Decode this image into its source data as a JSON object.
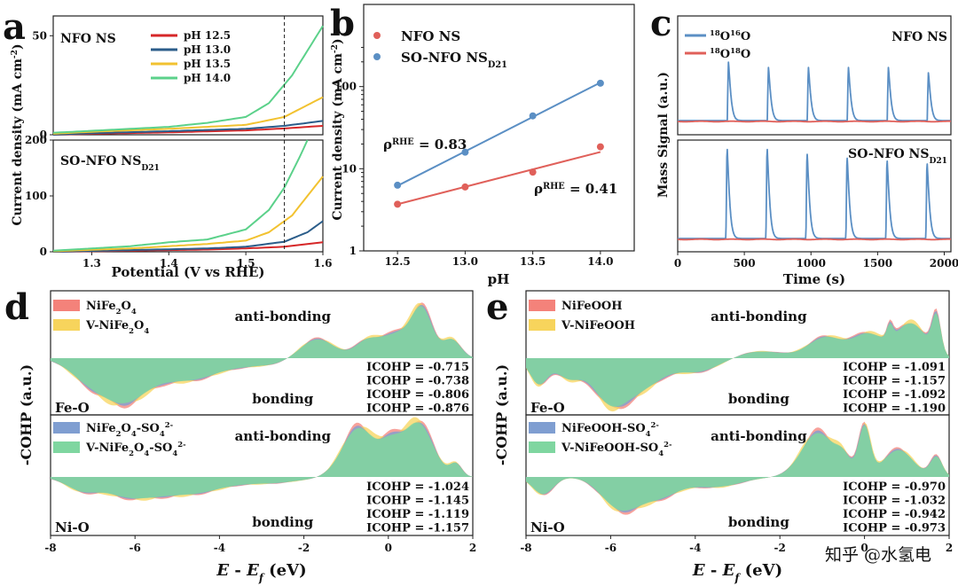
{
  "panel_letters": {
    "a": "a",
    "b": "b",
    "c": "c",
    "d": "d",
    "e": "e"
  },
  "colors": {
    "red": "#d62728",
    "blue": "#2b5d8a",
    "yellow": "#f2c230",
    "green": "#5bd18a",
    "ptblue": "#5b8fc4",
    "ptred": "#e0605a",
    "fillred": "#f4827a",
    "fillyellow": "#f7d45c",
    "fillblue": "#7f9ed1",
    "fillgreen": "#7fd6a0"
  },
  "chart_data": [
    {
      "id": "a-top",
      "type": "line",
      "title": "NFO NS",
      "xlim": [
        1.25,
        1.6
      ],
      "ylim": [
        0,
        60
      ],
      "yticks": [
        "0",
        "50"
      ],
      "series": [
        {
          "name": "pH 12.5",
          "color": "#d62728",
          "x": [
            1.25,
            1.3,
            1.4,
            1.5,
            1.55,
            1.6
          ],
          "y": [
            0,
            0.5,
            1.2,
            2.2,
            3.2,
            4.5
          ]
        },
        {
          "name": "pH 13.0",
          "color": "#2b5d8a",
          "x": [
            1.25,
            1.3,
            1.4,
            1.5,
            1.55,
            1.6
          ],
          "y": [
            0,
            0.8,
            1.8,
            3,
            4.5,
            7
          ]
        },
        {
          "name": "pH 13.5",
          "color": "#f2c230",
          "x": [
            1.25,
            1.3,
            1.4,
            1.5,
            1.55,
            1.6
          ],
          "y": [
            0.5,
            1.5,
            3,
            5,
            9,
            19
          ]
        },
        {
          "name": "pH 14.0",
          "color": "#5bd18a",
          "x": [
            1.25,
            1.3,
            1.4,
            1.45,
            1.5,
            1.53,
            1.56,
            1.6
          ],
          "y": [
            1,
            2,
            4,
            6,
            9,
            16,
            30,
            55
          ]
        }
      ]
    },
    {
      "id": "a-bottom",
      "type": "line",
      "title": "SO-NFO NS",
      "title_sub": "D21",
      "xlim": [
        1.25,
        1.6
      ],
      "ylim": [
        0,
        200
      ],
      "xticks": [
        "1.3",
        "1.4",
        "1.5",
        "1.6"
      ],
      "yticks": [
        "0",
        "100",
        "200"
      ],
      "xlabel": "Potential (V vs RHE)",
      "ylabel": "Current  density (mA cm",
      "ylabel_sup": "-2",
      "ylabel_end": ")",
      "vline": 1.55,
      "series": [
        {
          "name": "pH 12.5",
          "color": "#d62728",
          "x": [
            1.25,
            1.35,
            1.45,
            1.5,
            1.55,
            1.6
          ],
          "y": [
            0,
            2,
            4,
            6,
            9,
            17
          ]
        },
        {
          "name": "pH 13.0",
          "color": "#2b5d8a",
          "x": [
            1.25,
            1.35,
            1.45,
            1.5,
            1.55,
            1.58,
            1.6
          ],
          "y": [
            0,
            3,
            6,
            9,
            18,
            35,
            55
          ]
        },
        {
          "name": "pH 13.5",
          "color": "#f2c230",
          "x": [
            1.25,
            1.35,
            1.45,
            1.5,
            1.53,
            1.56,
            1.58,
            1.6
          ],
          "y": [
            1,
            6,
            14,
            20,
            35,
            65,
            100,
            135
          ]
        },
        {
          "name": "pH 14.0",
          "color": "#5bd18a",
          "x": [
            1.25,
            1.35,
            1.4,
            1.45,
            1.5,
            1.53,
            1.55,
            1.57,
            1.58
          ],
          "y": [
            2,
            10,
            17,
            22,
            40,
            75,
            115,
            170,
            200
          ]
        }
      ]
    },
    {
      "id": "b",
      "type": "scatter",
      "xlabel": "pH",
      "ylabel": "Current  density (mA cm",
      "ylabel_sup": "-2",
      "ylabel_end": ")",
      "xlim": [
        12.25,
        14.25
      ],
      "ylim": [
        1,
        1000
      ],
      "yscale": "log",
      "xticks": [
        "12.5",
        "13.0",
        "13.5",
        "14.0"
      ],
      "yticks": [
        "1",
        "10",
        "100"
      ],
      "series": [
        {
          "name": "NFO NS",
          "color": "#e0605a",
          "x": [
            12.5,
            13.0,
            13.5,
            14.0
          ],
          "y": [
            3.7,
            6.0,
            9.1,
            18.5
          ],
          "fit": [
            3.7,
            16.0
          ],
          "slope_label": "ρ",
          "slope_sup": "RHE",
          "slope_value": " = 0.41"
        },
        {
          "name": "SO-NFO NS",
          "name_sub": "D21",
          "color": "#5b8fc4",
          "x": [
            12.5,
            13.0,
            13.5,
            14.0
          ],
          "y": [
            6.3,
            15.9,
            44,
            110
          ],
          "fit": [
            6.2,
            112
          ],
          "slope_label": "ρ",
          "slope_sup": "RHE",
          "slope_value": " = 0.83"
        }
      ]
    },
    {
      "id": "c",
      "type": "line",
      "xlabel": "Time (s)",
      "ylabel": "Mass Signal (a.u.)",
      "xlim": [
        0,
        2050
      ],
      "xticks": [
        "0",
        "500",
        "1000",
        "1500",
        "2000"
      ],
      "top_title": "NFO NS",
      "bottom_title": "SO-NFO NS",
      "bottom_title_sub": "D21",
      "legend": [
        {
          "name": "O",
          "sup1": "18",
          "sup2": "16",
          "color": "#5b8fc4"
        },
        {
          "name": "O",
          "sup1": "18",
          "sup2": "18",
          "color": "#e0605a"
        }
      ],
      "peaks_top": [
        380,
        680,
        980,
        1280,
        1580,
        1880
      ],
      "peaks_bottom": [
        370,
        670,
        970,
        1270,
        1570,
        1870
      ],
      "peak_heights_top": [
        0.55,
        0.5,
        0.5,
        0.5,
        0.5,
        0.45
      ],
      "peak_heights_bottom": [
        0.92,
        0.92,
        0.87,
        0.83,
        0.8,
        0.77
      ]
    },
    {
      "id": "d",
      "type": "area",
      "xlabel": "E - E",
      "xlabel_sub": "f",
      "xlabel_end": " (eV)",
      "ylabel": "-COHP (a.u.)",
      "xlim": [
        -8,
        2
      ],
      "xticks": [
        "-8",
        "-6",
        "-4",
        "-2",
        "0",
        "2"
      ],
      "top": {
        "label": "Fe-O",
        "legend": [
          "NiFe2O4",
          "V-NiFe2O4"
        ],
        "icohp": [
          "ICOHP = -0.715",
          "ICOHP = -0.738",
          "ICOHP = -0.806",
          "ICOHP = -0.876"
        ]
      },
      "bottom": {
        "label": "Ni-O",
        "legend": [
          "NiFe2O4-SO42-",
          "V-NiFe2O4-SO42-"
        ],
        "icohp": [
          "ICOHP = -1.024",
          "ICOHP = -1.145",
          "ICOHP = -1.119",
          "ICOHP = -1.157"
        ]
      }
    },
    {
      "id": "e",
      "type": "area",
      "xlabel": "E - E",
      "xlabel_sub": "f",
      "xlabel_end": " (eV)",
      "ylabel": "-COHP (a.u.)",
      "xlim": [
        -8,
        2
      ],
      "xticks": [
        "-8",
        "-6",
        "-4",
        "-2",
        "0",
        "2"
      ],
      "top": {
        "label": "Fe-O",
        "legend": [
          "NiFeOOH",
          "V-NiFeOOH"
        ],
        "icohp": [
          "ICOHP = -1.091",
          "ICOHP = -1.157",
          "ICOHP = -1.092",
          "ICOHP = -1.190"
        ]
      },
      "bottom": {
        "label": "Ni-O",
        "legend": [
          "NiFeOOH-SO42-",
          "V-NiFeOOH-SO42-"
        ],
        "icohp": [
          "ICOHP = -0.970",
          "ICOHP = -1.032",
          "ICOHP = -0.942",
          "ICOHP = -0.973"
        ]
      }
    }
  ],
  "labels": {
    "anti": "anti-bonding",
    "bond": "bonding"
  },
  "watermark": "知乎 @水氢电"
}
